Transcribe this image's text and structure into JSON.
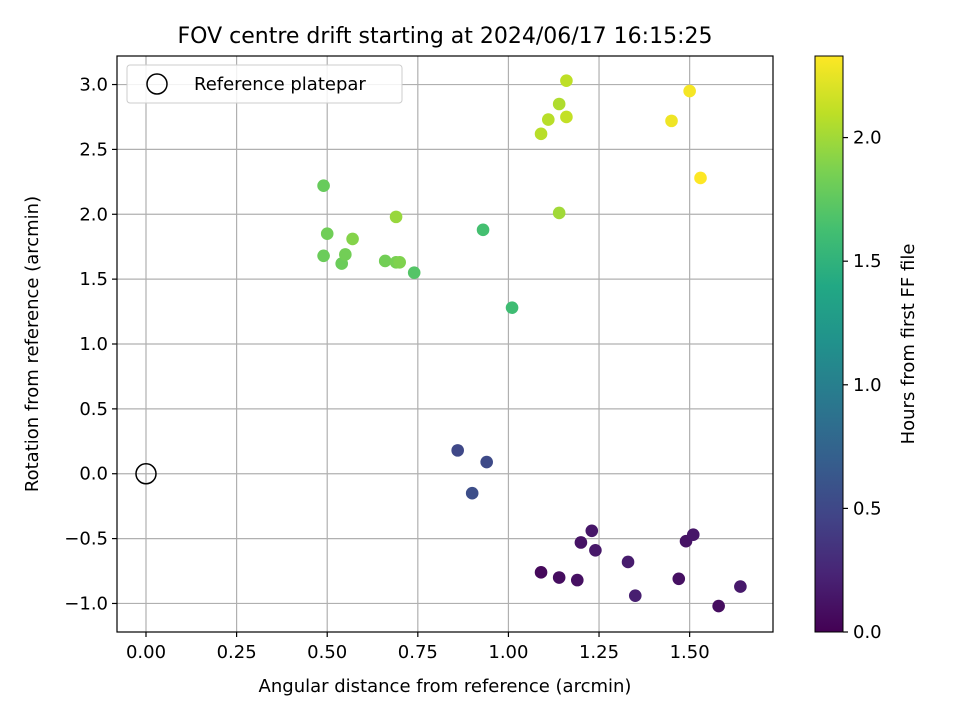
{
  "chart_data": {
    "type": "scatter",
    "title": "FOV centre drift starting at 2024/06/17 16:15:25",
    "xlabel": "Angular distance from reference (arcmin)",
    "ylabel": "Rotation from reference (arcmin)",
    "xlim": [
      -0.08,
      1.73
    ],
    "ylim": [
      -1.22,
      3.22
    ],
    "xticks": [
      0.0,
      0.25,
      0.5,
      0.75,
      1.0,
      1.25,
      1.5
    ],
    "xtick_labels": [
      "0.00",
      "0.25",
      "0.50",
      "0.75",
      "1.00",
      "1.25",
      "1.50"
    ],
    "yticks": [
      -1.0,
      -0.5,
      0.0,
      0.5,
      1.0,
      1.5,
      2.0,
      2.5,
      3.0
    ],
    "ytick_labels": [
      "−1.0",
      "−0.5",
      "0.0",
      "0.5",
      "1.0",
      "1.5",
      "2.0",
      "2.5",
      "3.0"
    ],
    "grid": true,
    "legend": {
      "position": "top-left",
      "entries": [
        {
          "label": "Reference platepar",
          "marker": "open-circle"
        }
      ]
    },
    "reference_point": {
      "x": 0.0,
      "y": 0.0
    },
    "colorbar": {
      "label": "Hours from first FF file",
      "min": 0.0,
      "max": 2.33,
      "colormap": "viridis",
      "ticks": [
        0.0,
        0.5,
        1.0,
        1.5,
        2.0
      ],
      "tick_labels": [
        "0.0",
        "0.5",
        "1.0",
        "1.5",
        "2.0"
      ]
    },
    "points": [
      {
        "x": 1.09,
        "y": -0.76,
        "c": 0.05
      },
      {
        "x": 1.14,
        "y": -0.8,
        "c": 0.08
      },
      {
        "x": 1.19,
        "y": -0.82,
        "c": 0.1
      },
      {
        "x": 1.2,
        "y": -0.53,
        "c": 0.12
      },
      {
        "x": 1.23,
        "y": -0.44,
        "c": 0.14
      },
      {
        "x": 1.24,
        "y": -0.59,
        "c": 0.15
      },
      {
        "x": 1.33,
        "y": -0.68,
        "c": 0.18
      },
      {
        "x": 1.35,
        "y": -0.94,
        "c": 0.2
      },
      {
        "x": 1.47,
        "y": -0.81,
        "c": 0.1
      },
      {
        "x": 1.49,
        "y": -0.52,
        "c": 0.12
      },
      {
        "x": 1.51,
        "y": -0.47,
        "c": 0.14
      },
      {
        "x": 1.58,
        "y": -1.02,
        "c": 0.08
      },
      {
        "x": 1.64,
        "y": -0.87,
        "c": 0.16
      },
      {
        "x": 0.86,
        "y": 0.18,
        "c": 0.5
      },
      {
        "x": 0.94,
        "y": 0.09,
        "c": 0.52
      },
      {
        "x": 0.9,
        "y": -0.15,
        "c": 0.55
      },
      {
        "x": 1.01,
        "y": 1.28,
        "c": 1.6
      },
      {
        "x": 0.93,
        "y": 1.88,
        "c": 1.63
      },
      {
        "x": 0.74,
        "y": 1.55,
        "c": 1.7
      },
      {
        "x": 0.49,
        "y": 2.22,
        "c": 1.78
      },
      {
        "x": 0.49,
        "y": 1.68,
        "c": 1.8
      },
      {
        "x": 0.5,
        "y": 1.85,
        "c": 1.82
      },
      {
        "x": 0.54,
        "y": 1.62,
        "c": 1.8
      },
      {
        "x": 0.55,
        "y": 1.69,
        "c": 1.83
      },
      {
        "x": 0.57,
        "y": 1.81,
        "c": 1.9
      },
      {
        "x": 0.66,
        "y": 1.64,
        "c": 1.83
      },
      {
        "x": 0.69,
        "y": 1.63,
        "c": 1.85
      },
      {
        "x": 0.7,
        "y": 1.63,
        "c": 1.88
      },
      {
        "x": 0.69,
        "y": 1.98,
        "c": 1.97
      },
      {
        "x": 1.09,
        "y": 2.62,
        "c": 2.08
      },
      {
        "x": 1.11,
        "y": 2.73,
        "c": 2.08
      },
      {
        "x": 1.14,
        "y": 2.85,
        "c": 2.05
      },
      {
        "x": 1.16,
        "y": 2.75,
        "c": 2.12
      },
      {
        "x": 1.16,
        "y": 3.03,
        "c": 2.1
      },
      {
        "x": 1.14,
        "y": 2.01,
        "c": 2.0
      },
      {
        "x": 1.45,
        "y": 2.72,
        "c": 2.28
      },
      {
        "x": 1.5,
        "y": 2.95,
        "c": 2.3
      },
      {
        "x": 1.53,
        "y": 2.28,
        "c": 2.33
      }
    ]
  }
}
